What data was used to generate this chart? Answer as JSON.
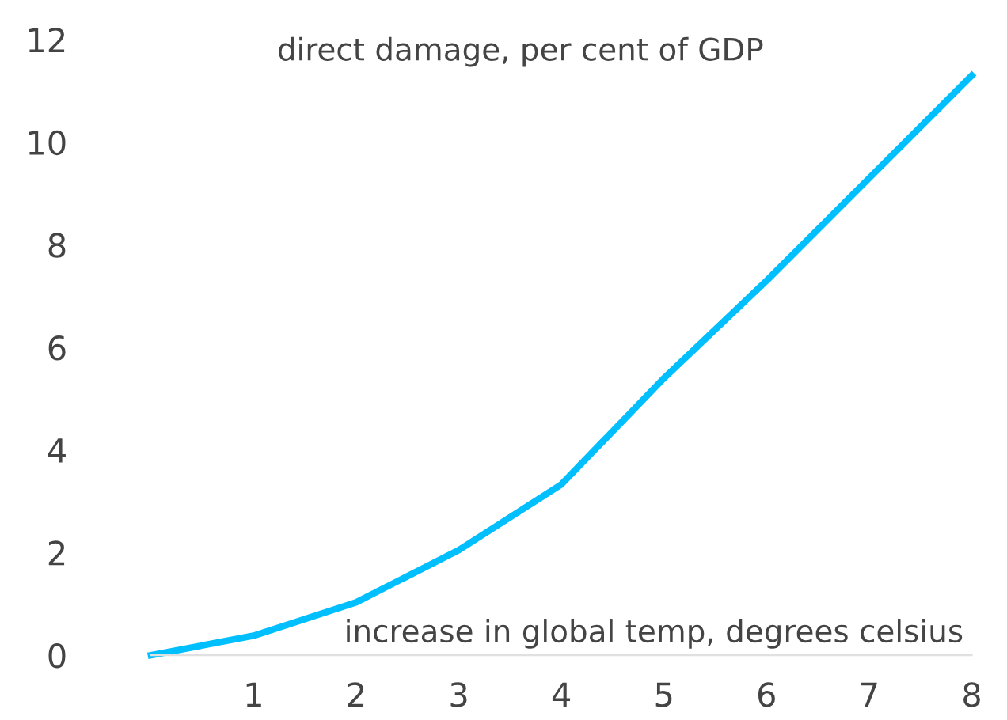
{
  "chart_data": {
    "type": "line",
    "x": [
      0,
      1,
      2,
      3,
      4,
      5,
      6,
      7,
      8
    ],
    "series": [
      {
        "color": "#00bfff",
        "values": [
          0,
          0.38,
          1.03,
          2.05,
          3.33,
          5.4,
          7.3,
          9.3,
          11.3
        ]
      }
    ],
    "xlabel": "increase in global temp, degrees celsius",
    "ylabel": "direct damage, per cent of GDP",
    "xlim": [
      0,
      8
    ],
    "ylim": [
      0,
      12
    ],
    "xticks": [
      1,
      2,
      3,
      4,
      5,
      6,
      7,
      8
    ],
    "yticks": [
      0,
      2,
      4,
      6,
      8,
      10,
      12
    ],
    "grid": false,
    "legend": false,
    "marker": "none",
    "line_style": "solid"
  }
}
